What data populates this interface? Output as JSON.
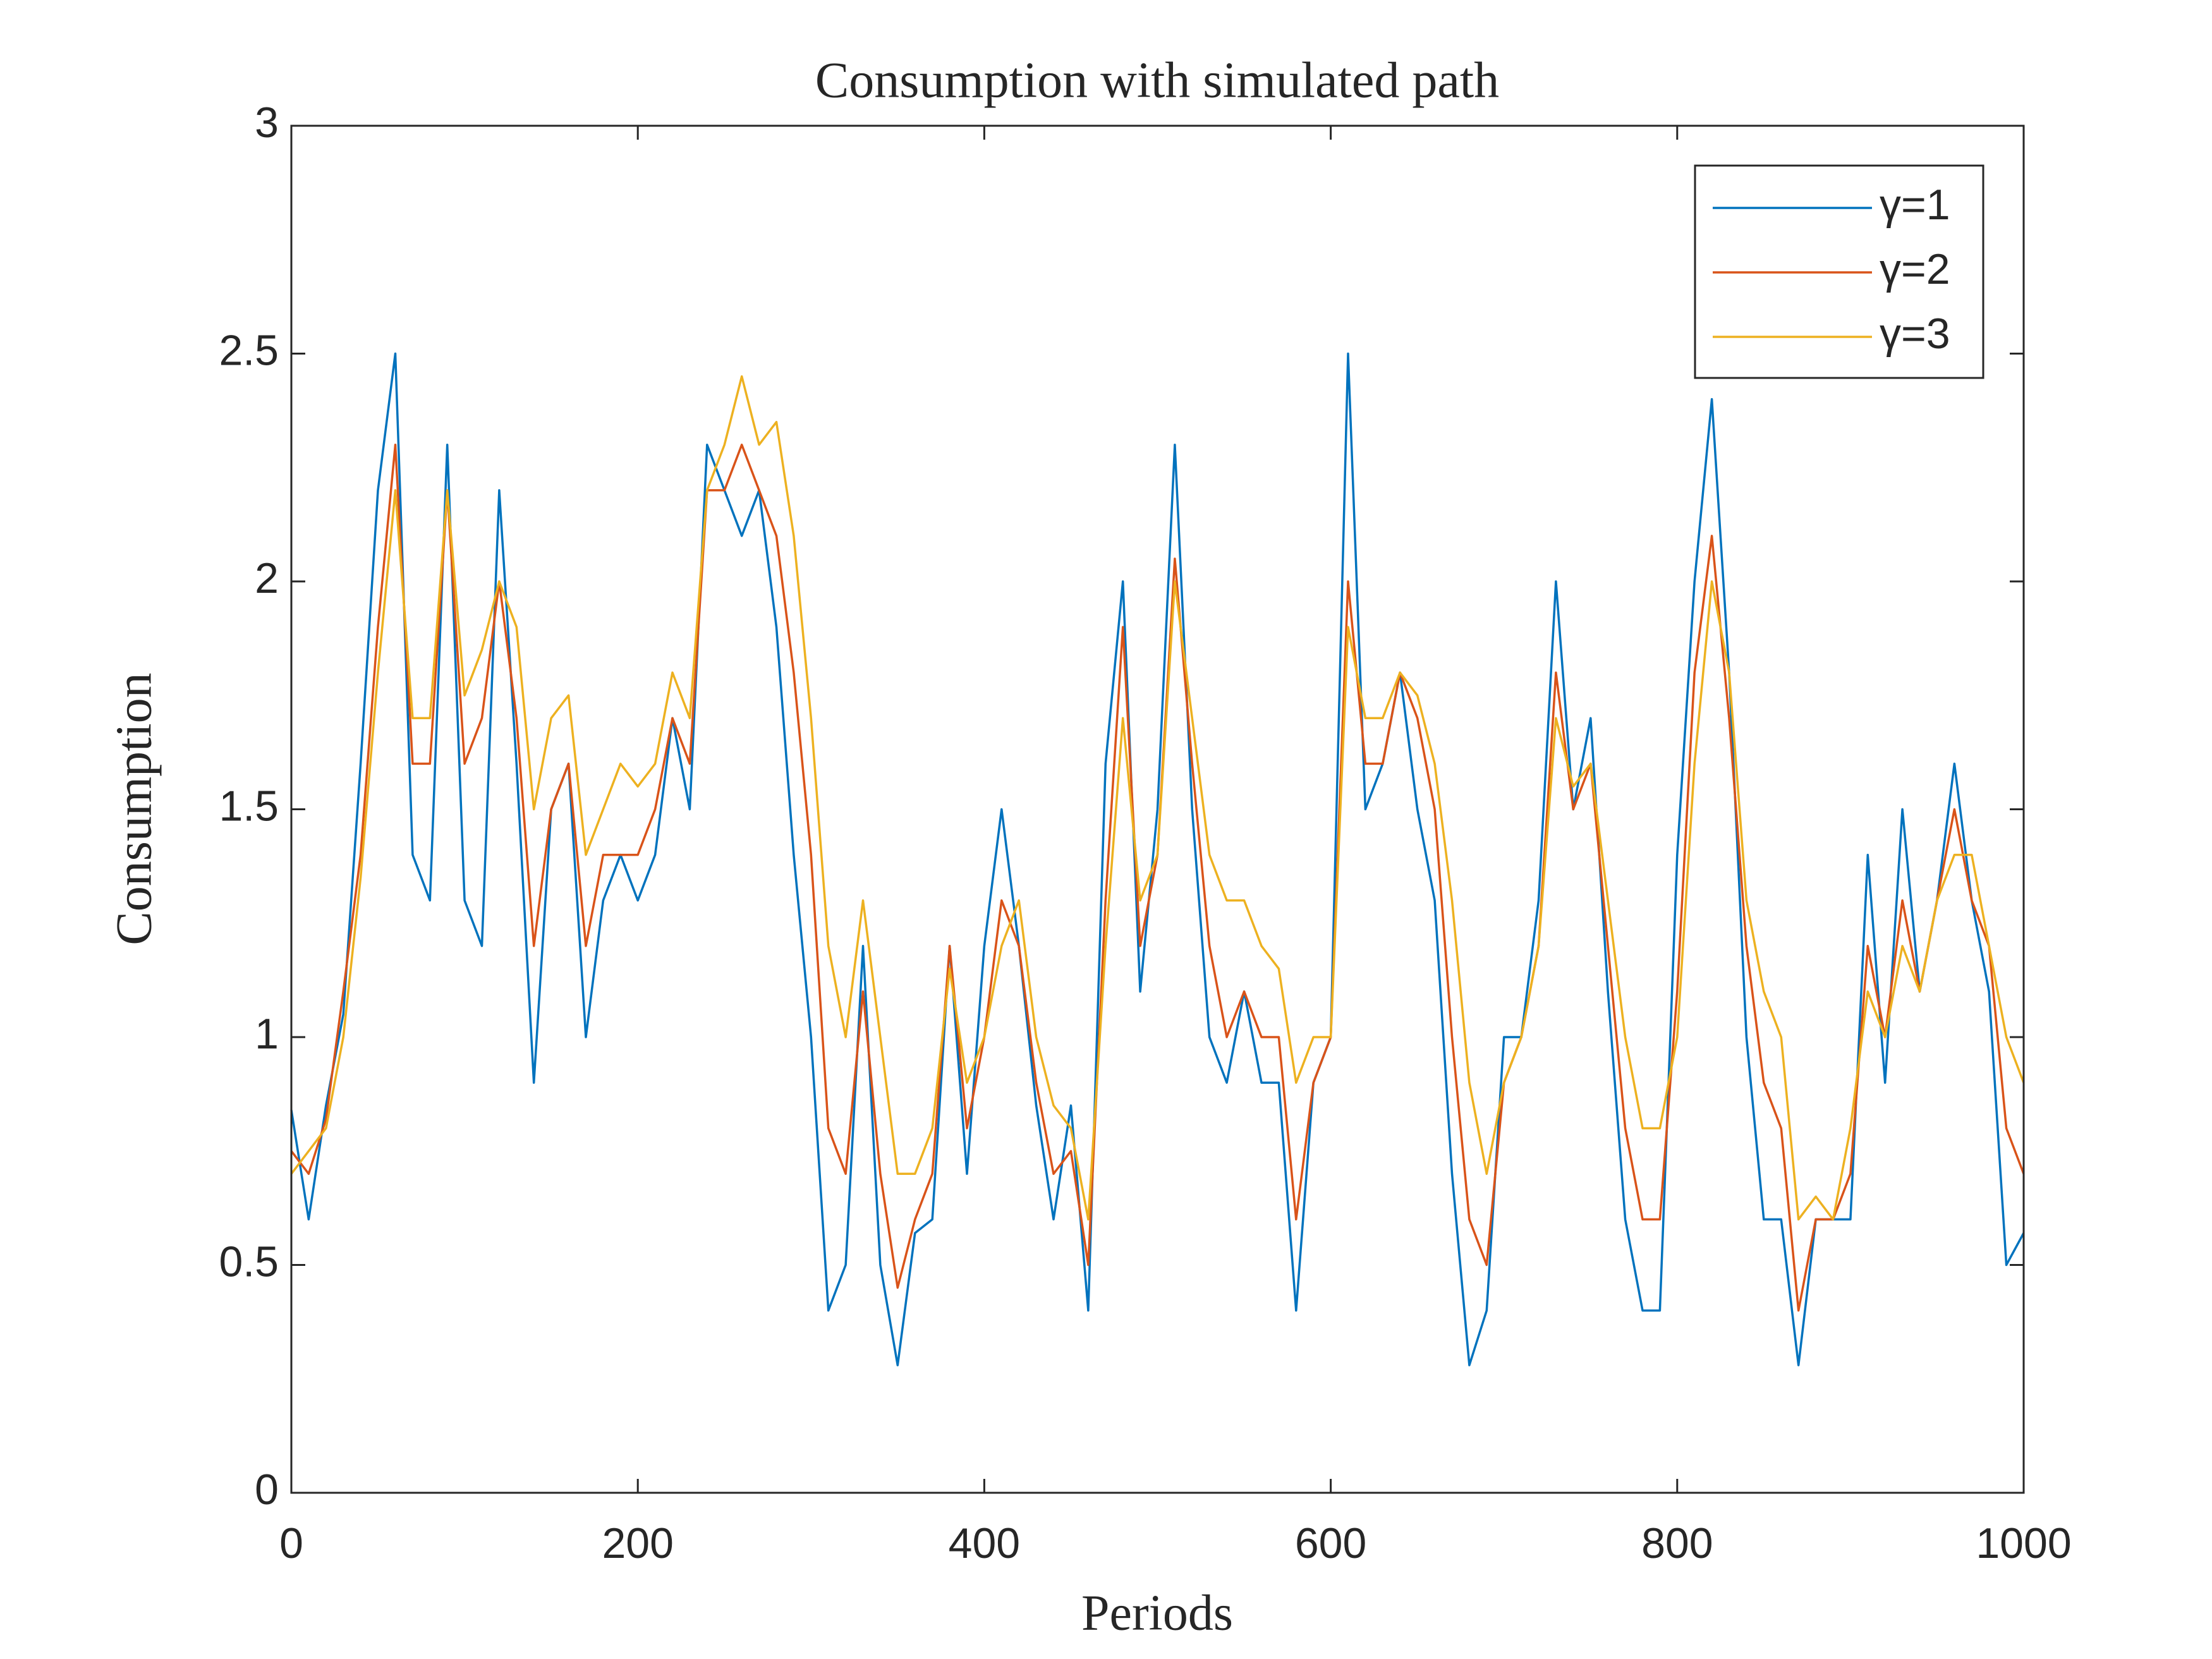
{
  "chart_data": {
    "type": "line",
    "title": "Consumption with simulated path",
    "x_label": "Periods",
    "y_label": "Consumption",
    "legend": "northeast",
    "x": [
      0,
      10,
      20,
      30,
      40,
      50,
      60,
      70,
      80,
      90,
      100,
      110,
      120,
      130,
      140,
      150,
      160,
      170,
      180,
      190,
      200,
      210,
      220,
      230,
      240,
      250,
      260,
      270,
      280,
      290,
      300,
      310,
      320,
      330,
      340,
      350,
      360,
      370,
      380,
      390,
      400,
      410,
      420,
      430,
      440,
      450,
      460,
      470,
      480,
      490,
      500,
      510,
      520,
      530,
      540,
      550,
      560,
      570,
      580,
      590,
      600,
      610,
      620,
      630,
      640,
      650,
      660,
      670,
      680,
      690,
      700,
      710,
      720,
      730,
      740,
      750,
      760,
      770,
      780,
      790,
      800,
      810,
      820,
      830,
      840,
      850,
      860,
      870,
      880,
      890,
      900,
      910,
      920,
      930,
      940,
      950,
      960,
      970,
      980,
      990,
      1000
    ],
    "series": [
      {
        "name": "γ=1",
        "color": "#0072BD",
        "values": [
          0.84,
          0.6,
          0.85,
          1.05,
          1.6,
          2.2,
          2.5,
          1.4,
          1.3,
          2.3,
          1.3,
          1.2,
          2.2,
          1.6,
          0.9,
          1.5,
          1.6,
          1.0,
          1.3,
          1.4,
          1.3,
          1.4,
          1.7,
          1.5,
          2.3,
          2.2,
          2.1,
          2.2,
          1.9,
          1.4,
          1.0,
          0.4,
          0.5,
          1.2,
          0.5,
          0.28,
          0.57,
          0.6,
          1.2,
          0.7,
          1.2,
          1.5,
          1.2,
          0.85,
          0.6,
          0.85,
          0.4,
          1.6,
          2.0,
          1.1,
          1.5,
          2.3,
          1.5,
          1.0,
          0.9,
          1.1,
          0.9,
          0.9,
          0.4,
          0.9,
          1.0,
          2.5,
          1.5,
          1.6,
          1.8,
          1.5,
          1.3,
          0.7,
          0.28,
          0.4,
          1.0,
          1.0,
          1.3,
          2.0,
          1.5,
          1.7,
          1.1,
          0.6,
          0.4,
          0.4,
          1.4,
          2.0,
          2.4,
          1.8,
          1.0,
          0.6,
          0.6,
          0.28,
          0.6,
          0.6,
          0.6,
          1.4,
          0.9,
          1.5,
          1.1,
          1.3,
          1.6,
          1.3,
          1.1,
          0.5,
          0.57
        ]
      },
      {
        "name": "γ=2",
        "color": "#D95319",
        "values": [
          0.75,
          0.7,
          0.82,
          1.1,
          1.4,
          1.9,
          2.3,
          1.6,
          1.6,
          2.2,
          1.6,
          1.7,
          2.0,
          1.7,
          1.2,
          1.5,
          1.6,
          1.2,
          1.4,
          1.4,
          1.4,
          1.5,
          1.7,
          1.6,
          2.2,
          2.2,
          2.3,
          2.2,
          2.1,
          1.8,
          1.4,
          0.8,
          0.7,
          1.1,
          0.7,
          0.45,
          0.6,
          0.7,
          1.2,
          0.8,
          1.0,
          1.3,
          1.2,
          0.9,
          0.7,
          0.75,
          0.5,
          1.3,
          1.9,
          1.2,
          1.4,
          2.05,
          1.6,
          1.2,
          1.0,
          1.1,
          1.0,
          1.0,
          0.6,
          0.9,
          1.0,
          2.0,
          1.6,
          1.6,
          1.8,
          1.7,
          1.5,
          1.0,
          0.6,
          0.5,
          0.9,
          1.0,
          1.2,
          1.8,
          1.5,
          1.6,
          1.2,
          0.8,
          0.6,
          0.6,
          1.1,
          1.8,
          2.1,
          1.7,
          1.2,
          0.9,
          0.8,
          0.4,
          0.6,
          0.6,
          0.7,
          1.2,
          1.0,
          1.3,
          1.1,
          1.3,
          1.5,
          1.3,
          1.2,
          0.8,
          0.7
        ]
      },
      {
        "name": "γ=3",
        "color": "#EDB120",
        "values": [
          0.7,
          0.75,
          0.8,
          1.0,
          1.35,
          1.8,
          2.2,
          1.7,
          1.7,
          2.2,
          1.75,
          1.85,
          2.0,
          1.9,
          1.5,
          1.7,
          1.75,
          1.4,
          1.5,
          1.6,
          1.55,
          1.6,
          1.8,
          1.7,
          2.2,
          2.3,
          2.45,
          2.3,
          2.35,
          2.1,
          1.7,
          1.2,
          1.0,
          1.3,
          1.0,
          0.7,
          0.7,
          0.8,
          1.15,
          0.9,
          1.0,
          1.2,
          1.3,
          1.0,
          0.85,
          0.8,
          0.6,
          1.2,
          1.7,
          1.3,
          1.4,
          2.0,
          1.7,
          1.4,
          1.3,
          1.3,
          1.2,
          1.15,
          0.9,
          1.0,
          1.0,
          1.9,
          1.7,
          1.7,
          1.8,
          1.75,
          1.6,
          1.3,
          0.9,
          0.7,
          0.9,
          1.0,
          1.2,
          1.7,
          1.55,
          1.6,
          1.3,
          1.0,
          0.8,
          0.8,
          1.0,
          1.6,
          2.0,
          1.8,
          1.3,
          1.1,
          1.0,
          0.6,
          0.65,
          0.6,
          0.8,
          1.1,
          1.0,
          1.2,
          1.1,
          1.3,
          1.4,
          1.4,
          1.2,
          1.0,
          0.9
        ]
      }
    ],
    "xlim": [
      0,
      1000
    ],
    "xticks": [
      0,
      200,
      400,
      600,
      800,
      1000
    ],
    "ylim": [
      0,
      3
    ],
    "yticks": [
      0,
      0.5,
      1,
      1.5,
      2,
      2.5,
      3
    ],
    "grid": false
  }
}
